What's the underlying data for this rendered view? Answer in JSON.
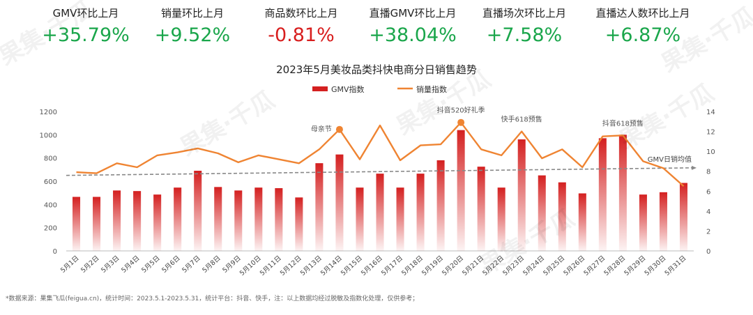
{
  "kpis": [
    {
      "label": "GMV环比上月",
      "value": "+35.79%",
      "color": "#1aa64b"
    },
    {
      "label": "销量环比上月",
      "value": "+9.52%",
      "color": "#1aa64b"
    },
    {
      "label": "商品数环比上月",
      "value": "-0.81%",
      "color": "#d81e1e"
    },
    {
      "label": "直播GMV环比上月",
      "value": "+38.04%",
      "color": "#1aa64b"
    },
    {
      "label": "直播场次环比上月",
      "value": "+7.58%",
      "color": "#1aa64b"
    },
    {
      "label": "直播达人数环比上月",
      "value": "+6.87%",
      "color": "#1aa64b"
    }
  ],
  "chart_data": {
    "type": "bar+line",
    "title": "2023年5月美妆品类抖快电商分日销售趋势",
    "categories": [
      "5月1日",
      "5月2日",
      "5月3日",
      "5月4日",
      "5月5日",
      "5月6日",
      "5月7日",
      "5月8日",
      "5月9日",
      "5月10日",
      "5月11日",
      "5月12日",
      "5月13日",
      "5月14日",
      "5月15日",
      "5月16日",
      "5月17日",
      "5月18日",
      "5月19日",
      "5月20日",
      "5月21日",
      "5月22日",
      "5月23日",
      "5月24日",
      "5月25日",
      "5月26日",
      "5月27日",
      "5月28日",
      "5月29日",
      "5月30日",
      "5月31日"
    ],
    "series": [
      {
        "name": "GMV指数",
        "type": "bar",
        "axis": "left",
        "color": "#d42020",
        "values": [
          465,
          465,
          520,
          515,
          485,
          545,
          690,
          550,
          520,
          545,
          540,
          460,
          755,
          830,
          545,
          665,
          545,
          665,
          780,
          1040,
          725,
          545,
          960,
          650,
          590,
          495,
          970,
          1000,
          485,
          505,
          585
        ]
      },
      {
        "name": "销量指数",
        "type": "line",
        "axis": "right",
        "color": "#ef8432",
        "values": [
          7.9,
          7.8,
          8.8,
          8.4,
          9.6,
          9.9,
          10.3,
          9.8,
          8.9,
          9.6,
          9.2,
          8.8,
          10.2,
          12.2,
          9.2,
          12.6,
          9.1,
          10.6,
          10.7,
          12.9,
          10.2,
          9.6,
          12.0,
          9.3,
          10.2,
          8.4,
          11.5,
          11.6,
          9.0,
          8.3,
          6.5
        ]
      }
    ],
    "ylim_left": [
      0,
      1200
    ],
    "yticks_left": [
      0,
      200,
      400,
      600,
      800,
      1000,
      1200
    ],
    "ylim_right": [
      0,
      14
    ],
    "yticks_right": [
      0,
      2,
      4,
      6,
      8,
      10,
      12,
      14
    ],
    "legend_position": "top-center",
    "reference_line": {
      "label": "GMV日销均值",
      "start_value": 650,
      "end_value": 715,
      "color": "#888888"
    },
    "annotations": [
      {
        "label": "母亲节",
        "index": 13
      },
      {
        "label": "抖音520好礼季",
        "index": 19
      },
      {
        "label": "快手618预售",
        "index": 22
      },
      {
        "label": "抖音618预售",
        "index": 27
      }
    ],
    "grid": false
  },
  "footnote": "*数据来源：果集飞瓜(feigua.cn)，统计时间：2023.5.1-2023.5.31，统计平台：抖音、快手，注：以上数据均经过脱敏及指数化处理，仅供参考；",
  "watermark": "果集·千瓜"
}
